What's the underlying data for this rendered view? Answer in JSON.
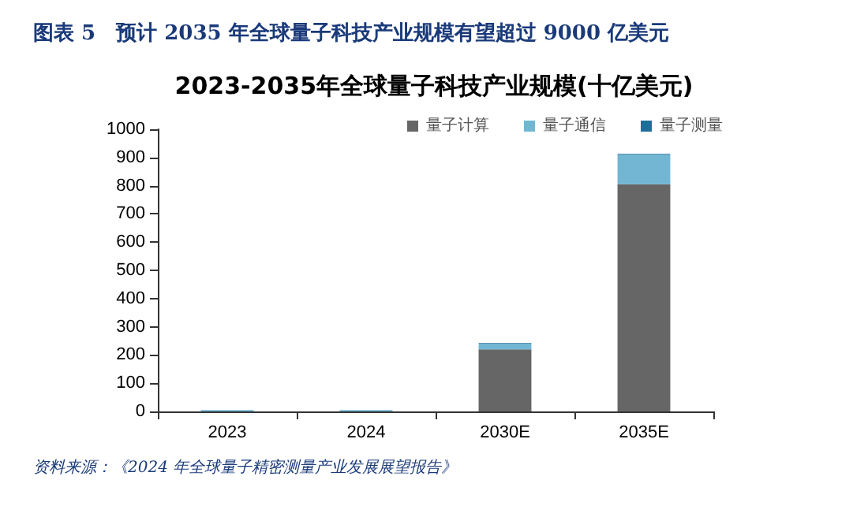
{
  "chart_data": {
    "type": "bar",
    "title": "图表 5　预计 2035 年全球量子科技产业规模有望超过 9000 亿美元",
    "subtitle": "2023-2035年全球量子科技产业规模(十亿美元)",
    "categories": [
      "2023",
      "2024",
      "2030E",
      "2035E"
    ],
    "series": [
      {
        "name": "量子计算",
        "color": "#666666",
        "values": [
          null,
          null,
          220,
          805
        ]
      },
      {
        "name": "量子通信",
        "color": "#72b6d4",
        "values": [
          5,
          5,
          20,
          105
        ]
      },
      {
        "name": "量子测量",
        "color": "#1f6e99",
        "values": [
          null,
          null,
          2,
          3
        ]
      }
    ],
    "stacked": true,
    "ylim": [
      0,
      1000
    ],
    "yticks": [
      0,
      100,
      200,
      300,
      400,
      500,
      600,
      700,
      800,
      900,
      1000
    ],
    "grid": false,
    "legend": "top",
    "annotations": [
      "资料来源：《2024 年全球量子精密测量产业发展展望报告》"
    ]
  }
}
